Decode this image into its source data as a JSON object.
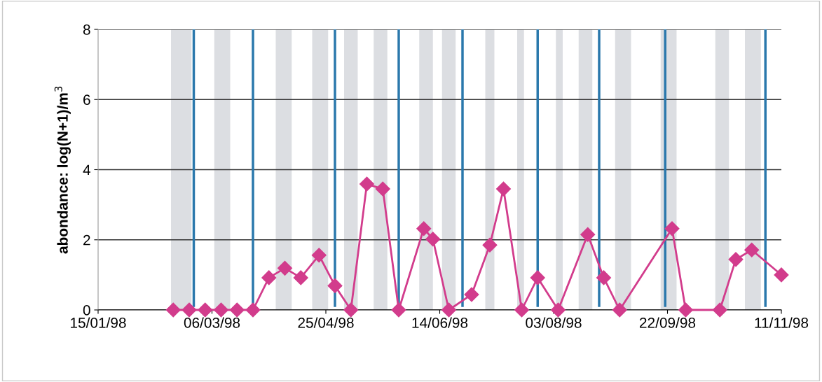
{
  "chart_data": {
    "type": "line",
    "ylabel": "abondance: log(N+1)/m$^{3}$",
    "x": [
      "1998-02-17",
      "1998-02-24",
      "1998-03-03",
      "1998-03-10",
      "1998-03-17",
      "1998-03-24",
      "1998-03-31",
      "1998-04-07",
      "1998-04-14",
      "1998-04-22",
      "1998-04-29",
      "1998-05-06",
      "1998-05-13",
      "1998-05-20",
      "1998-05-27",
      "1998-06-07",
      "1998-06-11",
      "1998-06-18",
      "1998-06-28",
      "1998-07-06",
      "1998-07-12",
      "1998-07-20",
      "1998-07-27",
      "1998-08-05",
      "1998-08-18",
      "1998-08-25",
      "1998-09-01",
      "1998-09-24",
      "1998-09-30",
      "1998-10-15",
      "1998-10-22",
      "1998-10-29",
      "1998-11-11"
    ],
    "series": [
      {
        "color": "#d23c8c",
        "values": [
          0,
          0,
          0,
          0,
          0,
          0,
          0.92,
          1.19,
          0.92,
          1.56,
          0.69,
          0,
          3.59,
          3.45,
          0,
          2.32,
          2.02,
          0,
          0.44,
          1.85,
          3.45,
          0,
          0.92,
          0,
          2.15,
          0.92,
          0,
          2.32,
          0,
          0,
          1.44,
          1.71,
          1.0
        ]
      }
    ],
    "marker": "diamond",
    "line_style": "solid",
    "grid": "y",
    "legend": false,
    "xlim": [
      "1998-01-15",
      "1998-11-11"
    ],
    "xticks": [
      {
        "value": "1998-01-15",
        "label": "15/01/98"
      },
      {
        "value": "1998-03-06",
        "label": "06/03/98"
      },
      {
        "value": "1998-04-25",
        "label": "25/04/98"
      },
      {
        "value": "1998-06-14",
        "label": "14/06/98"
      },
      {
        "value": "1998-08-03",
        "label": "03/08/98"
      },
      {
        "value": "1998-09-22",
        "label": "22/09/98"
      },
      {
        "value": "1998-11-11",
        "label": "11/11/98"
      }
    ],
    "ylim": [
      0,
      8
    ],
    "yticks": [
      0,
      2,
      4,
      6,
      8
    ],
    "ref_lines": [
      {
        "axis": "x",
        "value": "1998-02-26",
        "color": "#2a78ac"
      },
      {
        "axis": "x",
        "value": "1998-03-24",
        "color": "#2a78ac"
      },
      {
        "axis": "x",
        "value": "1998-04-29",
        "color": "#2a78ac"
      },
      {
        "axis": "x",
        "value": "1998-05-27",
        "color": "#2a78ac"
      },
      {
        "axis": "x",
        "value": "1998-06-24",
        "color": "#2a78ac"
      },
      {
        "axis": "x",
        "value": "1998-07-27",
        "color": "#2a78ac"
      },
      {
        "axis": "x",
        "value": "1998-08-23",
        "color": "#2a78ac"
      },
      {
        "axis": "x",
        "value": "1998-09-21",
        "color": "#2a78ac"
      },
      {
        "axis": "x",
        "value": "1998-11-04",
        "color": "#2a78ac"
      }
    ],
    "bands": [
      {
        "axis": "x",
        "from": "1998-02-16",
        "to": "1998-02-25",
        "color": "#dcdee2"
      },
      {
        "axis": "x",
        "from": "1998-03-07",
        "to": "1998-03-14",
        "color": "#dcdee2"
      },
      {
        "axis": "x",
        "from": "1998-04-03",
        "to": "1998-04-10",
        "color": "#dcdee2"
      },
      {
        "axis": "x",
        "from": "1998-04-19",
        "to": "1998-04-26",
        "color": "#dcdee2"
      },
      {
        "axis": "x",
        "from": "1998-05-03",
        "to": "1998-05-09",
        "color": "#dcdee2"
      },
      {
        "axis": "x",
        "from": "1998-05-16",
        "to": "1998-05-22",
        "color": "#dcdee2"
      },
      {
        "axis": "x",
        "from": "1998-06-05",
        "to": "1998-06-11",
        "color": "#dcdee2"
      },
      {
        "axis": "x",
        "from": "1998-06-15",
        "to": "1998-06-21",
        "color": "#dcdee2"
      },
      {
        "axis": "x",
        "from": "1998-07-04",
        "to": "1998-07-08",
        "color": "#dcdee2"
      },
      {
        "axis": "x",
        "from": "1998-07-18",
        "to": "1998-07-21",
        "color": "#dcdee2"
      },
      {
        "axis": "x",
        "from": "1998-08-04",
        "to": "1998-08-07",
        "color": "#dcdee2"
      },
      {
        "axis": "x",
        "from": "1998-08-14",
        "to": "1998-08-20",
        "color": "#dcdee2"
      },
      {
        "axis": "x",
        "from": "1998-08-30",
        "to": "1998-09-06",
        "color": "#dcdee2"
      },
      {
        "axis": "x",
        "from": "1998-09-19",
        "to": "1998-09-26",
        "color": "#dcdee2"
      },
      {
        "axis": "x",
        "from": "1998-10-13",
        "to": "1998-10-19",
        "color": "#dcdee2"
      },
      {
        "axis": "x",
        "from": "1998-10-26",
        "to": "1998-11-02",
        "color": "#dcdee2"
      }
    ]
  }
}
